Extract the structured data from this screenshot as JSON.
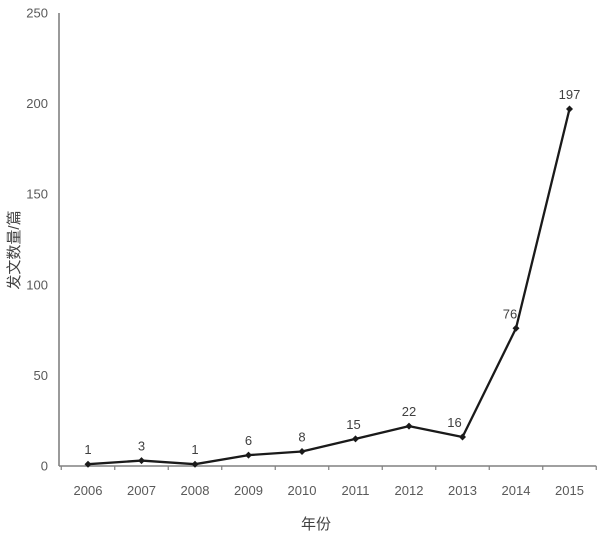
{
  "chart_data": {
    "type": "line",
    "title": "",
    "xlabel": "年份",
    "ylabel": "发文数量/篇",
    "categories": [
      "2006",
      "2007",
      "2008",
      "2009",
      "2010",
      "2011",
      "2012",
      "2013",
      "2014",
      "2015"
    ],
    "values": [
      1,
      3,
      1,
      6,
      8,
      15,
      22,
      16,
      76,
      197
    ],
    "ylim": [
      0,
      250
    ],
    "yticks": [
      0,
      50,
      100,
      150,
      200,
      250
    ],
    "grid": false,
    "legend": "none",
    "data_labels_shown": true,
    "line_color": "#1a1a1a",
    "marker_color": "#1a1a1a",
    "axis_color": "#808080",
    "tick_label_color": "#595959",
    "data_label_color": "#404040",
    "background_color": "#ffffff"
  }
}
